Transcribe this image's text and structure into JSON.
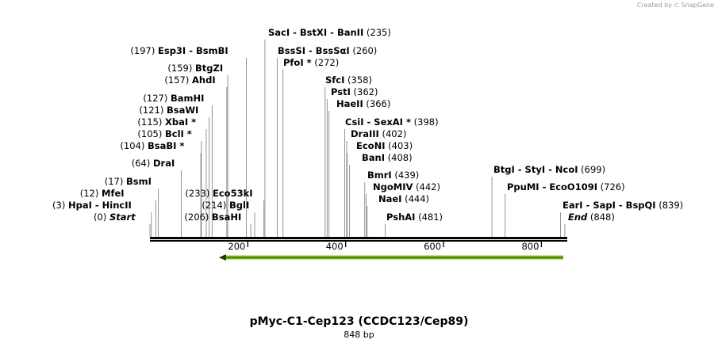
{
  "credit": "Created by ⊂ SnapGene",
  "title": "pMyc-C1-Cep123 (CCDC123/Cep89)",
  "subtitle": "848 bp",
  "map_data": {
    "length": 848,
    "ticks": [
      200,
      400,
      600,
      800
    ],
    "feature": {
      "name": "green-arrow",
      "start": 136,
      "end": 848,
      "direction": "reverse",
      "color": "#7cc41f"
    },
    "sites": [
      {
        "pos": 0,
        "name": "Start",
        "italic": true,
        "num_right": false
      },
      {
        "pos": 3,
        "name": "HpaI  -  HincII",
        "num_right": false
      },
      {
        "pos": 12,
        "name": "MfeI",
        "num_right": false
      },
      {
        "pos": 17,
        "name": "BsmI",
        "num_right": false
      },
      {
        "pos": 64,
        "name": "DraI",
        "num_right": false
      },
      {
        "pos": 104,
        "name": "BsaBI *",
        "num_right": false
      },
      {
        "pos": 105,
        "name": "BclI *",
        "num_right": false
      },
      {
        "pos": 115,
        "name": "XbaI *",
        "num_right": false
      },
      {
        "pos": 121,
        "name": "BsaWI",
        "num_right": false
      },
      {
        "pos": 127,
        "name": "BamHI",
        "num_right": false
      },
      {
        "pos": 157,
        "name": "AhdI",
        "num_right": false
      },
      {
        "pos": 159,
        "name": "BtgZI",
        "num_right": false
      },
      {
        "pos": 197,
        "name": "Esp3I  -  BsmBI",
        "num_right": false
      },
      {
        "pos": 206,
        "name": "BsaHI",
        "num_right": false
      },
      {
        "pos": 214,
        "name": "BglI",
        "num_right": false
      },
      {
        "pos": 233,
        "name": "Eco53kI",
        "num_right": false
      },
      {
        "pos": 235,
        "name": "SacI  -  BstXI  -  BanII",
        "num_right": true
      },
      {
        "pos": 260,
        "name": "BssSI  -  BssSαI",
        "num_right": true
      },
      {
        "pos": 272,
        "name": "PfoI *",
        "num_right": true
      },
      {
        "pos": 358,
        "name": "SfcI",
        "num_right": true
      },
      {
        "pos": 362,
        "name": "PstI",
        "num_right": true
      },
      {
        "pos": 366,
        "name": "HaeII",
        "num_right": true
      },
      {
        "pos": 398,
        "name": "CsiI  -  SexAI *",
        "num_right": true
      },
      {
        "pos": 402,
        "name": "DraIII",
        "num_right": true
      },
      {
        "pos": 403,
        "name": "EcoNI",
        "num_right": true
      },
      {
        "pos": 408,
        "name": "BanI",
        "num_right": true
      },
      {
        "pos": 439,
        "name": "BmrI",
        "num_right": true
      },
      {
        "pos": 442,
        "name": "NgoMIV",
        "num_right": true
      },
      {
        "pos": 444,
        "name": "NaeI",
        "num_right": true
      },
      {
        "pos": 481,
        "name": "PshAI",
        "num_right": true
      },
      {
        "pos": 699,
        "name": "BtgI  -  StyI  -  NcoI",
        "num_right": true
      },
      {
        "pos": 726,
        "name": "PpuMI  -  EcoO109I",
        "num_right": true
      },
      {
        "pos": 839,
        "name": "EarI  -  SapI  -  BspQI",
        "num_right": true
      },
      {
        "pos": 848,
        "name": "End",
        "italic": true,
        "num_right": true
      }
    ]
  }
}
